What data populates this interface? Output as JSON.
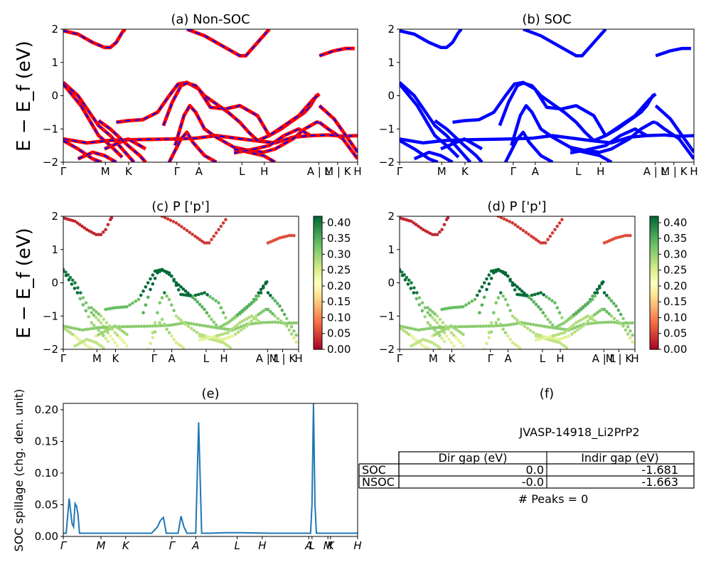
{
  "chart_data": [
    {
      "id": "a",
      "type": "line",
      "title": "(a) Non-SOC",
      "ylabel": "E − E_f (eV)",
      "ylim": [
        -2,
        2
      ],
      "yticks": [
        "−2",
        "−1",
        "0",
        "1",
        "2"
      ],
      "kpath_labels": [
        "Γ",
        "M",
        "K",
        "Γ",
        "A",
        "L",
        "H",
        "A | L",
        "M | K",
        "H"
      ],
      "series": [
        {
          "color": "#ff0000",
          "dash_color": "#0000ff",
          "bands": [
            [
              [
                0,
                0.4
              ],
              [
                0.05,
                0.0
              ],
              [
                0.12,
                -0.9
              ],
              [
                0.16,
                -1.2
              ],
              [
                0.2,
                -1.6
              ],
              [
                0.24,
                -2.0
              ]
            ],
            [
              [
                0,
                0.35
              ],
              [
                0.06,
                -0.3
              ],
              [
                0.12,
                -1.2
              ],
              [
                0.16,
                -1.5
              ],
              [
                0.2,
                -1.85
              ]
            ],
            [
              [
                0,
                -1.3
              ],
              [
                0.08,
                -1.42
              ],
              [
                0.15,
                -1.35
              ],
              [
                0.2,
                -1.33
              ],
              [
                0.25,
                -1.32
              ],
              [
                0.32,
                -1.31
              ],
              [
                0.38,
                -1.3
              ],
              [
                0.45,
                -1.28
              ],
              [
                0.52,
                -1.2
              ],
              [
                0.58,
                -1.27
              ],
              [
                0.65,
                -1.35
              ],
              [
                0.72,
                -1.42
              ],
              [
                0.78,
                -1.25
              ],
              [
                0.84,
                -1.2
              ],
              [
                0.9,
                -1.18
              ],
              [
                0.95,
                -1.22
              ],
              [
                1.0,
                -1.2
              ]
            ],
            [
              [
                0,
                -1.35
              ],
              [
                0.05,
                -1.6
              ],
              [
                0.1,
                -1.9
              ],
              [
                0.13,
                -2.0
              ]
            ],
            [
              [
                0.14,
                -1.6
              ],
              [
                0.18,
                -1.45
              ],
              [
                0.22,
                -1.3
              ],
              [
                0.24,
                -1.4
              ],
              [
                0.28,
                -1.6
              ]
            ],
            [
              [
                0.05,
                -1.9
              ],
              [
                0.1,
                -1.7
              ],
              [
                0.14,
                -1.8
              ],
              [
                0.18,
                -2.0
              ]
            ],
            [
              [
                0.12,
                -0.75
              ],
              [
                0.16,
                -1.0
              ],
              [
                0.22,
                -1.5
              ],
              [
                0.26,
                -1.8
              ],
              [
                0.28,
                -2.0
              ]
            ],
            [
              [
                0.18,
                -0.8
              ],
              [
                0.22,
                -0.75
              ],
              [
                0.27,
                -0.72
              ],
              [
                0.32,
                -0.5
              ],
              [
                0.36,
                0.0
              ],
              [
                0.39,
                0.35
              ],
              [
                0.42,
                0.4
              ],
              [
                0.46,
                0.2
              ],
              [
                0.5,
                -0.35
              ],
              [
                0.55,
                -0.4
              ],
              [
                0.6,
                -0.3
              ],
              [
                0.66,
                -0.6
              ],
              [
                0.7,
                -1.2
              ],
              [
                0.74,
                -1.0
              ],
              [
                0.78,
                -0.75
              ],
              [
                0.82,
                -0.5
              ],
              [
                0.84,
                -0.3
              ],
              [
                0.86,
                0.0
              ],
              [
                0.87,
                0.05
              ]
            ],
            [
              [
                0.34,
                -0.9
              ],
              [
                0.37,
                -0.2
              ],
              [
                0.4,
                0.3
              ],
              [
                0.42,
                0.38
              ],
              [
                0.45,
                0.3
              ],
              [
                0.48,
                0.0
              ],
              [
                0.52,
                -0.25
              ],
              [
                0.56,
                -0.5
              ],
              [
                0.6,
                -0.8
              ],
              [
                0.63,
                -1.1
              ],
              [
                0.66,
                -1.35
              ],
              [
                0.7,
                -1.2
              ],
              [
                0.75,
                -0.9
              ],
              [
                0.8,
                -0.6
              ],
              [
                0.83,
                -0.3
              ],
              [
                0.85,
                -0.1
              ],
              [
                0.87,
                0.05
              ]
            ],
            [
              [
                0.38,
                -1.5
              ],
              [
                0.41,
                -0.6
              ],
              [
                0.43,
                -0.3
              ],
              [
                0.45,
                -0.5
              ],
              [
                0.48,
                -1.0
              ],
              [
                0.52,
                -1.25
              ],
              [
                0.58,
                -1.55
              ],
              [
                0.63,
                -1.65
              ],
              [
                0.68,
                -1.7
              ],
              [
                0.72,
                -1.6
              ],
              [
                0.78,
                -1.3
              ],
              [
                0.82,
                -1.0
              ],
              [
                0.86,
                -0.8
              ],
              [
                0.87,
                -0.8
              ]
            ],
            [
              [
                0.36,
                -2.0
              ],
              [
                0.4,
                -1.3
              ],
              [
                0.42,
                -1.1
              ],
              [
                0.44,
                -1.4
              ],
              [
                0.48,
                -1.8
              ],
              [
                0.52,
                -2.0
              ]
            ],
            [
              [
                0.58,
                -1.6
              ],
              [
                0.63,
                -1.7
              ],
              [
                0.68,
                -1.8
              ],
              [
                0.72,
                -2.0
              ]
            ],
            [
              [
                0.58,
                -1.72
              ],
              [
                0.64,
                -1.62
              ],
              [
                0.7,
                -1.5
              ],
              [
                0.75,
                -1.2
              ],
              [
                0.8,
                -1.0
              ],
              [
                0.84,
                -1.2
              ]
            ],
            [
              [
                0.87,
                -0.8
              ],
              [
                0.9,
                -1.0
              ],
              [
                0.95,
                -1.3
              ],
              [
                1.0,
                -1.9
              ]
            ],
            [
              [
                0.87,
                -0.3
              ],
              [
                0.92,
                -0.7
              ],
              [
                0.96,
                -1.2
              ],
              [
                1.0,
                -1.7
              ]
            ],
            [
              [
                0.0,
                1.95
              ],
              [
                0.05,
                1.85
              ],
              [
                0.1,
                1.6
              ],
              [
                0.14,
                1.45
              ],
              [
                0.16,
                1.45
              ],
              [
                0.18,
                1.6
              ],
              [
                0.2,
                1.9
              ],
              [
                0.21,
                2.0
              ]
            ],
            [
              [
                0.42,
                2.0
              ],
              [
                0.48,
                1.8
              ],
              [
                0.56,
                1.4
              ],
              [
                0.6,
                1.2
              ],
              [
                0.62,
                1.2
              ],
              [
                0.66,
                1.6
              ],
              [
                0.7,
                2.0
              ]
            ],
            [
              [
                0.87,
                1.2
              ],
              [
                0.92,
                1.35
              ],
              [
                0.96,
                1.42
              ],
              [
                0.99,
                1.42
              ]
            ]
          ]
        }
      ]
    },
    {
      "id": "b",
      "type": "line",
      "title": "(b) SOC",
      "ylim": [
        -2,
        2
      ],
      "yticks": [
        "−2",
        "−1",
        "0",
        "1",
        "2"
      ],
      "kpath_labels": [
        "Γ",
        "M",
        "K",
        "Γ",
        "A",
        "L",
        "H",
        "A | L",
        "M | K",
        "H"
      ],
      "series": [
        {
          "color": "#0000ff"
        }
      ]
    },
    {
      "id": "c",
      "type": "scatter",
      "title": "(c)  P ['p']",
      "ylabel": "E − E_f (eV)",
      "ylim": [
        -2,
        2
      ],
      "yticks": [
        "−2",
        "−1",
        "0",
        "1",
        "2"
      ],
      "kpath_labels": [
        "Γ",
        "M",
        "K",
        "Γ",
        "A",
        "L",
        "H",
        "A | L",
        "M | K",
        "H"
      ],
      "colorbar": {
        "min": 0.0,
        "max": 0.42,
        "ticks": [
          "0.00",
          "0.05",
          "0.10",
          "0.15",
          "0.20",
          "0.25",
          "0.30",
          "0.35",
          "0.40"
        ],
        "colormap": "RdYlGn"
      }
    },
    {
      "id": "d",
      "type": "scatter",
      "title": "(d) P ['p']",
      "ylim": [
        -2,
        2
      ],
      "yticks": [
        "−2",
        "−1",
        "0",
        "1",
        "2"
      ],
      "kpath_labels": [
        "Γ",
        "M",
        "K",
        "Γ",
        "A",
        "L",
        "H",
        "A | L",
        "M | K",
        "H"
      ],
      "colorbar": {
        "min": 0.0,
        "max": 0.42,
        "ticks": [
          "0.00",
          "0.05",
          "0.10",
          "0.15",
          "0.20",
          "0.25",
          "0.30",
          "0.35",
          "0.40"
        ],
        "colormap": "RdYlGn"
      }
    },
    {
      "id": "e",
      "type": "line",
      "title": "(e)",
      "ylabel": "SOC spillage (chg. den. unit)",
      "ylim": [
        0,
        0.21
      ],
      "yticks": [
        "0.00",
        "0.05",
        "0.10",
        "0.15",
        "0.20"
      ],
      "kpath_labels": [
        "Γ",
        "M",
        "K",
        "Γ",
        "A",
        "L",
        "H",
        "A",
        "L",
        "M",
        "K",
        "H"
      ],
      "series": [
        {
          "color": "#1f77b4",
          "x": [
            0,
            0.01,
            0.02,
            0.025,
            0.03,
            0.035,
            0.04,
            0.045,
            0.05,
            0.055,
            0.06,
            0.07,
            0.1,
            0.2,
            0.3,
            0.31,
            0.32,
            0.33,
            0.34,
            0.35,
            0.37,
            0.39,
            0.4,
            0.41,
            0.42,
            0.45,
            0.46,
            0.47,
            0.48,
            0.49,
            0.5,
            0.55,
            0.6,
            0.7,
            0.8,
            0.83,
            0.84,
            0.845,
            0.85,
            0.855,
            0.86,
            0.9,
            1.0
          ],
          "y": [
            0.005,
            0.005,
            0.06,
            0.04,
            0.02,
            0.015,
            0.052,
            0.048,
            0.035,
            0.005,
            0.005,
            0.005,
            0.005,
            0.005,
            0.005,
            0.01,
            0.015,
            0.025,
            0.03,
            0.005,
            0.005,
            0.005,
            0.032,
            0.015,
            0.005,
            0.005,
            0.18,
            0.005,
            0.005,
            0.005,
            0.005,
            0.006,
            0.006,
            0.005,
            0.005,
            0.005,
            0.005,
            0.05,
            0.21,
            0.05,
            0.005,
            0.005,
            0.005
          ]
        }
      ]
    },
    {
      "id": "f",
      "type": "table",
      "title": "(f)",
      "material": "JVASP-14918_Li2PrP2",
      "columns": [
        "",
        "Dir gap (eV)",
        "Indir gap (eV)"
      ],
      "rows": [
        {
          "label": "SOC",
          "dir": "0.0",
          "indir": "-1.681"
        },
        {
          "label": "NSOC",
          "dir": "-0.0",
          "indir": "-1.663"
        }
      ],
      "peaks_text": "# Peaks = 0"
    }
  ]
}
